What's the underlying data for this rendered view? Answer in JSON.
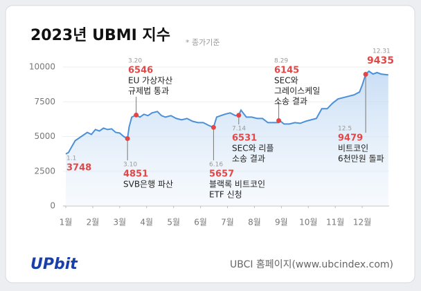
{
  "chart_data": {
    "type": "line",
    "title": "2023년 UBMI 지수",
    "subtitle": "* 종가기준",
    "source": "UBCI 홈페이지(www.ubcindex.com)",
    "brand": "UPbit",
    "xlim": [
      1,
      13
    ],
    "xticks": [
      {
        "value": 1,
        "label": "1월"
      },
      {
        "value": 2,
        "label": "2월"
      },
      {
        "value": 3,
        "label": "3월"
      },
      {
        "value": 4,
        "label": "4월"
      },
      {
        "value": 5,
        "label": "5월"
      },
      {
        "value": 6,
        "label": "6월"
      },
      {
        "value": 7,
        "label": "7월"
      },
      {
        "value": 8,
        "label": "8월"
      },
      {
        "value": 9,
        "label": "9월"
      },
      {
        "value": 10,
        "label": "10월"
      },
      {
        "value": 11,
        "label": "11월"
      },
      {
        "value": 12,
        "label": "12월"
      }
    ],
    "ylim": [
      0,
      10000
    ],
    "yticks": [
      0,
      2500,
      5000,
      7500,
      10000
    ],
    "grid": true,
    "series": [
      {
        "name": "UBMI",
        "color": "#4a90d9",
        "x": [
          1.0,
          1.1,
          1.2,
          1.35,
          1.5,
          1.65,
          1.8,
          1.95,
          2.1,
          2.25,
          2.4,
          2.55,
          2.7,
          2.85,
          3.0,
          3.15,
          3.29,
          3.35,
          3.45,
          3.61,
          3.75,
          3.9,
          4.05,
          4.2,
          4.4,
          4.55,
          4.7,
          4.9,
          5.1,
          5.3,
          5.5,
          5.7,
          5.9,
          6.1,
          6.3,
          6.48,
          6.6,
          6.75,
          6.9,
          7.1,
          7.3,
          7.42,
          7.5,
          7.7,
          7.9,
          8.1,
          8.3,
          8.5,
          8.7,
          8.9,
          8.94,
          9.1,
          9.3,
          9.5,
          9.7,
          9.9,
          10.1,
          10.3,
          10.5,
          10.7,
          10.9,
          11.1,
          11.3,
          11.5,
          11.7,
          11.9,
          12.0,
          12.13,
          12.25,
          12.4,
          12.55,
          12.7,
          12.97
        ],
        "values": [
          3748,
          3850,
          4200,
          4700,
          4900,
          5100,
          5300,
          5150,
          5500,
          5400,
          5600,
          5500,
          5550,
          5300,
          5250,
          5000,
          4851,
          5700,
          6400,
          6546,
          6400,
          6600,
          6500,
          6700,
          6800,
          6500,
          6400,
          6500,
          6300,
          6200,
          6300,
          6100,
          6000,
          6000,
          5800,
          5657,
          6400,
          6500,
          6600,
          6700,
          6500,
          6531,
          6900,
          6400,
          6400,
          6300,
          6300,
          6000,
          6000,
          6000,
          6145,
          5900,
          5900,
          6000,
          5950,
          6100,
          6200,
          6300,
          7000,
          7000,
          7400,
          7700,
          7800,
          7900,
          8000,
          8200,
          8700,
          9479,
          9700,
          9500,
          9600,
          9500,
          9435
        ]
      }
    ],
    "annotations": [
      {
        "date": "1.1",
        "value": 3748,
        "text": []
      },
      {
        "date": "3.20",
        "value": 6546,
        "text": [
          "EU 가상자산",
          "규제법 통과"
        ]
      },
      {
        "date": "3.10",
        "value": 4851,
        "text": [
          "SVB은행 파산"
        ]
      },
      {
        "date": "6.16",
        "value": 5657,
        "text": [
          "블랙록 비트코인",
          "ETF 신청"
        ]
      },
      {
        "date": "7.14",
        "value": 6531,
        "text": [
          "SEC와 리플",
          "소송 결과"
        ]
      },
      {
        "date": "8.29",
        "value": 6145,
        "text": [
          "SEC와",
          "그레이스케일",
          "소송 결과"
        ]
      },
      {
        "date": "12.5",
        "value": 9479,
        "text": [
          "비트코인",
          "6천만원 돌파"
        ]
      },
      {
        "date": "12.31",
        "value": 9435,
        "text": []
      }
    ]
  }
}
